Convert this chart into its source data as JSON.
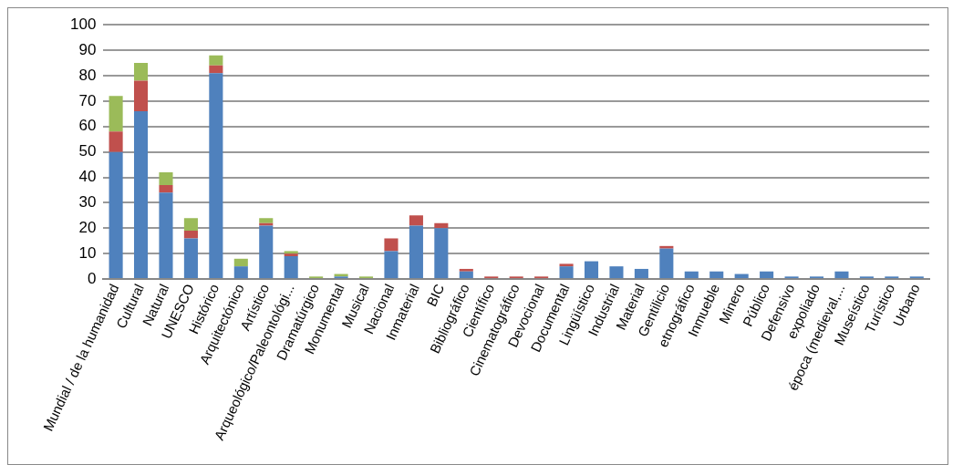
{
  "chart_data": {
    "type": "bar",
    "stacked": true,
    "categories": [
      "Mundial / de la humanidad",
      "Cultural",
      "Natural",
      "UNESCO",
      "Histórico",
      "Arquitectónico",
      "Artístico",
      "Arqueológico/Paleontológi...",
      "Dramatúrgico",
      "Monumental",
      "Musical",
      "Nacional",
      "Inmaterial",
      "BIC",
      "Bibliográfico",
      "Científico",
      "Cinematográfico",
      "Devocional",
      "Documental",
      "Lingüístico",
      "Industrial",
      "Material",
      "Gentilicio",
      "etnográfico",
      "Inmueble",
      "Minero",
      "Público",
      "Defensivo",
      "expoliado",
      "época (medieval,...",
      "Museístico",
      "Turístico",
      "Urbano"
    ],
    "series": [
      {
        "color": "#4f81bd",
        "values": [
          50,
          66,
          34,
          16,
          81,
          5,
          21,
          9,
          0,
          1,
          0,
          11,
          21,
          20,
          3,
          0,
          0,
          0,
          5,
          7,
          5,
          4,
          12,
          3,
          3,
          2,
          3,
          1,
          1,
          3,
          1,
          1,
          1
        ]
      },
      {
        "color": "#c0504d",
        "values": [
          8,
          12,
          3,
          3,
          3,
          0,
          1,
          1,
          0,
          0,
          0,
          5,
          4,
          2,
          1,
          1,
          1,
          1,
          1,
          0,
          0,
          0,
          1,
          0,
          0,
          0,
          0,
          0,
          0,
          0,
          0,
          0,
          0
        ]
      },
      {
        "color": "#9bbb59",
        "values": [
          14,
          7,
          5,
          5,
          4,
          3,
          2,
          1,
          1,
          1,
          1,
          0,
          0,
          0,
          0,
          0,
          0,
          0,
          0,
          0,
          0,
          0,
          0,
          0,
          0,
          0,
          0,
          0,
          0,
          0,
          0,
          0,
          0
        ]
      }
    ],
    "ylim": [
      0,
      100
    ],
    "yticks": [
      0,
      10,
      20,
      30,
      40,
      50,
      60,
      70,
      80,
      90,
      100
    ],
    "grid": "y"
  }
}
